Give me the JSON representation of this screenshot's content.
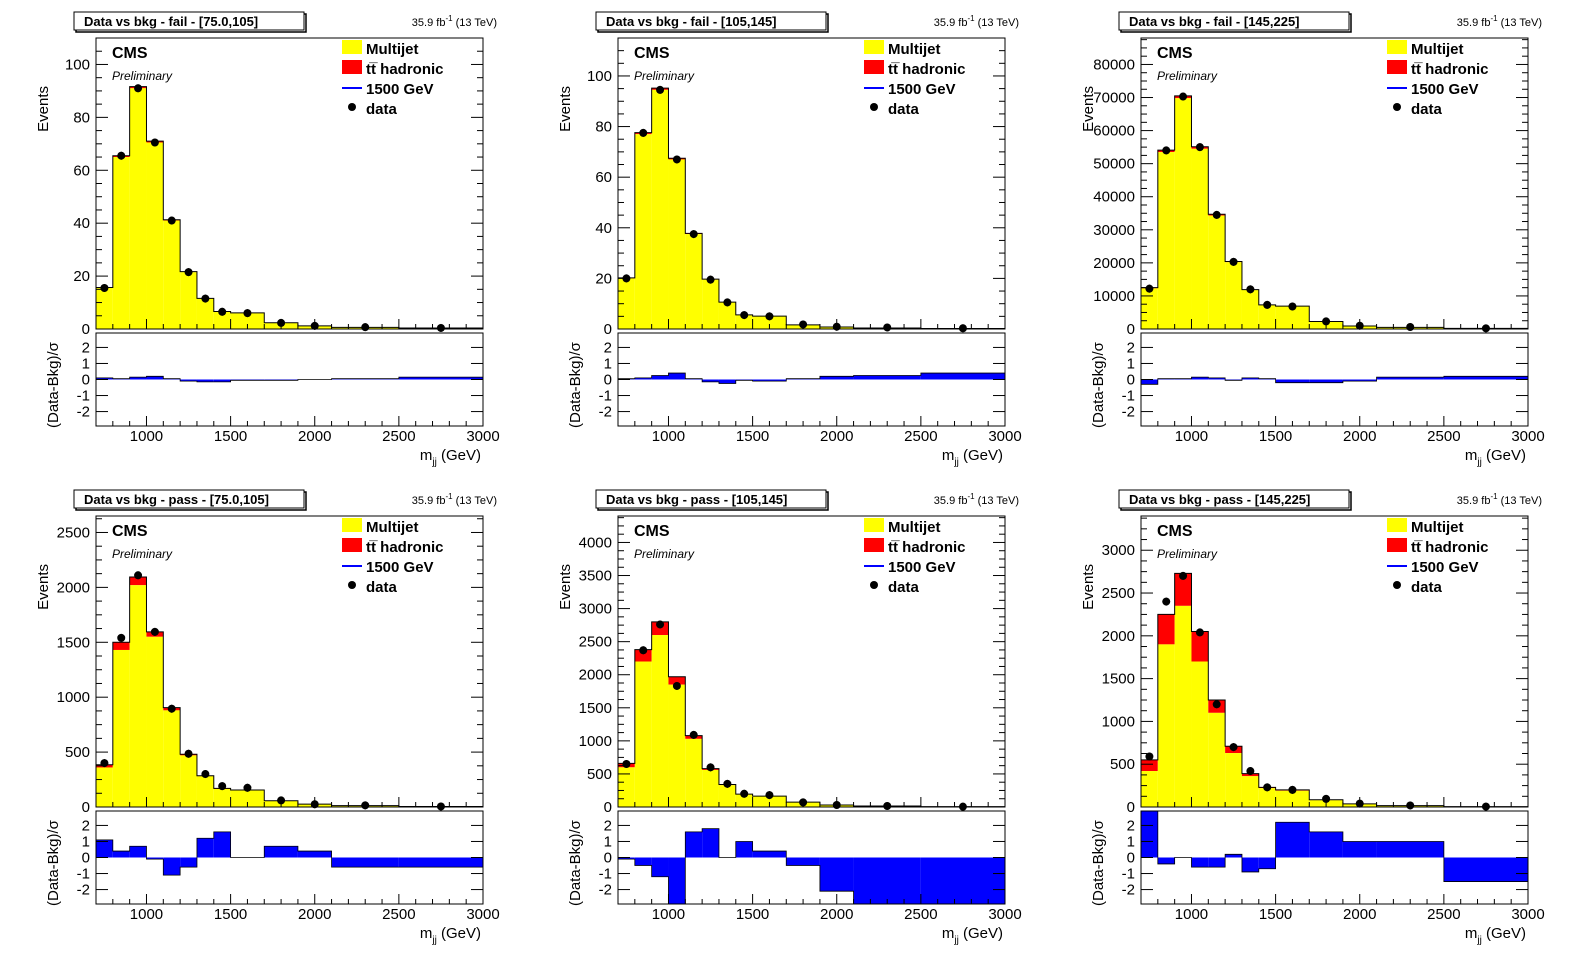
{
  "legend": {
    "entries": [
      {
        "label": "Multijet",
        "kind": "box",
        "color": "#ffff00"
      },
      {
        "label": "tt̅ hadronic",
        "kind": "box",
        "color": "#ff0000"
      },
      {
        "label": "1500 GeV",
        "kind": "line",
        "color": "#0000ff"
      },
      {
        "label": "data",
        "kind": "marker",
        "color": "#000000"
      }
    ]
  },
  "labels": {
    "cms": "CMS",
    "preliminary": "Preliminary",
    "lumi": "35.9 fb",
    "lumi_exp": "-1",
    "energy": " (13 TeV)",
    "ylabel_top": "Events",
    "ylabel_ratio": "(Data-Bkg)/σ",
    "xlabel_main": "m",
    "xlabel_sub": "jj",
    "xlabel_unit": " (GeV)"
  },
  "colors": {
    "multijet": "#ffff00",
    "ttbar": "#ff0000",
    "pull": "#0000ff",
    "data": "#000000"
  },
  "chart_data": [
    {
      "type": "bar",
      "title": "Data vs bkg - fail - [75.0,105]",
      "xlim": [
        700,
        3000
      ],
      "ylim": [
        0,
        110
      ],
      "yticks": [
        0,
        20,
        40,
        60,
        80,
        100
      ],
      "xticks": [
        1000,
        1500,
        2000,
        2500,
        3000
      ],
      "bin_edges": [
        700,
        800,
        900,
        1000,
        1100,
        1200,
        1300,
        1400,
        1500,
        1700,
        1900,
        2100,
        2500,
        3000
      ],
      "series": [
        {
          "name": "Multijet",
          "values": [
            15.5,
            65,
            91,
            70.5,
            41,
            21.5,
            11.5,
            6.5,
            6,
            2.3,
            1.2,
            0.6,
            0.4
          ]
        },
        {
          "name": "tt̅ hadronic",
          "values": [
            0.2,
            0.5,
            0.6,
            0.5,
            0.3,
            0.2,
            0.1,
            0.1,
            0.1,
            0.05,
            0,
            0,
            0
          ]
        }
      ],
      "data": [
        15.5,
        65.5,
        91,
        70.5,
        41,
        21.5,
        11.5,
        6.5,
        6,
        2.3,
        1.2,
        0.7,
        0.4
      ],
      "pull": [
        0.1,
        0.05,
        0.15,
        0.2,
        0.05,
        -0.1,
        -0.15,
        -0.15,
        -0.05,
        -0.05,
        0,
        0.05,
        0.15
      ]
    },
    {
      "type": "bar",
      "title": "Data vs bkg - fail - [105,145]",
      "xlim": [
        700,
        3000
      ],
      "ylim": [
        0,
        115
      ],
      "yticks": [
        0,
        20,
        40,
        60,
        80,
        100
      ],
      "xticks": [
        1000,
        1500,
        2000,
        2500,
        3000
      ],
      "bin_edges": [
        700,
        800,
        900,
        1000,
        1100,
        1200,
        1300,
        1400,
        1500,
        1700,
        1900,
        2100,
        2500,
        3000
      ],
      "series": [
        {
          "name": "Multijet",
          "values": [
            20,
            77,
            94.5,
            67,
            37.5,
            19.5,
            10.5,
            5.5,
            5,
            1.6,
            0.8,
            0.4,
            0.2
          ]
        },
        {
          "name": "tt̅ hadronic",
          "values": [
            0.2,
            0.6,
            0.7,
            0.5,
            0.3,
            0.2,
            0.1,
            0.1,
            0.1,
            0.05,
            0,
            0,
            0
          ]
        }
      ],
      "data": [
        20,
        77.5,
        94.5,
        67,
        37.5,
        19.5,
        10.5,
        5.5,
        5,
        1.8,
        0.9,
        0.6,
        0.3
      ],
      "pull": [
        0.05,
        0.1,
        0.25,
        0.4,
        0.05,
        -0.15,
        -0.25,
        -0.05,
        -0.1,
        0.05,
        0.2,
        0.25,
        0.4
      ]
    },
    {
      "type": "bar",
      "title": "Data vs bkg - fail - [145,225]",
      "xlim": [
        700,
        3000
      ],
      "ylim": [
        0,
        88000
      ],
      "yticks": [
        0,
        10000,
        20000,
        30000,
        40000,
        50000,
        60000,
        70000,
        80000
      ],
      "xticks": [
        1000,
        1500,
        2000,
        2500,
        3000
      ],
      "bin_edges": [
        700,
        800,
        900,
        1000,
        1100,
        1200,
        1300,
        1400,
        1500,
        1700,
        1900,
        2100,
        2500,
        3000
      ],
      "series": [
        {
          "name": "Multijet",
          "values": [
            12300,
            53500,
            69800,
            54500,
            34300,
            20200,
            11800,
            7200,
            6800,
            2200,
            900,
            500,
            200
          ]
        },
        {
          "name": "tt̅ hadronic",
          "values": [
            200,
            600,
            700,
            600,
            400,
            200,
            100,
            100,
            100,
            50,
            0,
            0,
            0
          ]
        }
      ],
      "data": [
        12200,
        54000,
        70300,
        55000,
        34500,
        20300,
        12000,
        7300,
        6800,
        2300,
        1000,
        600,
        200
      ],
      "pull": [
        -0.3,
        0.05,
        0.05,
        0.15,
        0.1,
        -0.05,
        0.1,
        0.05,
        -0.2,
        -0.2,
        -0.1,
        0.15,
        0.2
      ]
    },
    {
      "type": "bar",
      "title": "Data vs bkg - pass - [75.0,105]",
      "xlim": [
        700,
        3000
      ],
      "ylim": [
        0,
        2650
      ],
      "yticks": [
        0,
        500,
        1000,
        1500,
        2000,
        2500
      ],
      "xticks": [
        1000,
        1500,
        2000,
        2500,
        3000
      ],
      "bin_edges": [
        700,
        800,
        900,
        1000,
        1100,
        1200,
        1300,
        1400,
        1500,
        1700,
        1900,
        2100,
        2500,
        3000
      ],
      "series": [
        {
          "name": "Multijet",
          "values": [
            360,
            1430,
            2020,
            1550,
            880,
            470,
            280,
            165,
            150,
            55,
            25,
            12,
            5
          ]
        },
        {
          "name": "tt̅ hadronic",
          "values": [
            25,
            70,
            75,
            45,
            25,
            10,
            5,
            5,
            5,
            2,
            1,
            0,
            0
          ]
        }
      ],
      "data": [
        400,
        1540,
        2110,
        1595,
        895,
        485,
        300,
        190,
        175,
        60,
        25,
        15,
        5
      ],
      "pull": [
        1.1,
        0.4,
        0.7,
        -0.1,
        -1.1,
        -0.6,
        1.2,
        1.6,
        0,
        0.7,
        0.4,
        -0.6,
        -0.6
      ]
    },
    {
      "type": "bar",
      "title": "Data vs bkg - pass - [105,145]",
      "xlim": [
        700,
        3000
      ],
      "ylim": [
        0,
        4400
      ],
      "yticks": [
        0,
        500,
        1000,
        1500,
        2000,
        2500,
        3000,
        3500,
        4000
      ],
      "xticks": [
        1000,
        1500,
        2000,
        2500,
        3000
      ],
      "bin_edges": [
        700,
        800,
        900,
        1000,
        1100,
        1200,
        1300,
        1400,
        1500,
        1700,
        1900,
        2100,
        2500,
        3000
      ],
      "series": [
        {
          "name": "Multijet",
          "values": [
            600,
            2200,
            2600,
            1850,
            1030,
            560,
            330,
            190,
            160,
            70,
            30,
            15,
            5
          ]
        },
        {
          "name": "tt̅ hadronic",
          "values": [
            60,
            180,
            200,
            120,
            50,
            20,
            10,
            5,
            5,
            3,
            1,
            0,
            0
          ]
        }
      ],
      "data": [
        650,
        2370,
        2760,
        1830,
        1090,
        600,
        350,
        200,
        180,
        70,
        30,
        15,
        5
      ],
      "pull": [
        -0.1,
        -0.5,
        -1.2,
        -2.9,
        1.6,
        1.8,
        0,
        1,
        0.4,
        -0.5,
        -2.1,
        -2.9,
        -2.9
      ]
    },
    {
      "type": "bar",
      "title": "Data vs bkg - pass - [145,225]",
      "xlim": [
        700,
        3000
      ],
      "ylim": [
        0,
        3400
      ],
      "yticks": [
        0,
        500,
        1000,
        1500,
        2000,
        2500,
        3000
      ],
      "xticks": [
        1000,
        1500,
        2000,
        2500,
        3000
      ],
      "bin_edges": [
        700,
        800,
        900,
        1000,
        1100,
        1200,
        1300,
        1400,
        1500,
        1700,
        1900,
        2100,
        2500,
        3000
      ],
      "series": [
        {
          "name": "Multijet",
          "values": [
            420,
            1900,
            2350,
            1700,
            1100,
            630,
            360,
            220,
            190,
            80,
            35,
            15,
            5
          ]
        },
        {
          "name": "tt̅ hadronic",
          "values": [
            130,
            350,
            380,
            350,
            150,
            80,
            30,
            10,
            10,
            5,
            2,
            1,
            0
          ]
        }
      ],
      "data": [
        590,
        2400,
        2700,
        2040,
        1200,
        700,
        420,
        230,
        200,
        95,
        40,
        18,
        5
      ],
      "pull": [
        2.9,
        -0.4,
        0,
        -0.6,
        -0.6,
        0.2,
        -0.9,
        -0.7,
        2.2,
        1.6,
        1,
        1,
        -1.5
      ]
    }
  ]
}
